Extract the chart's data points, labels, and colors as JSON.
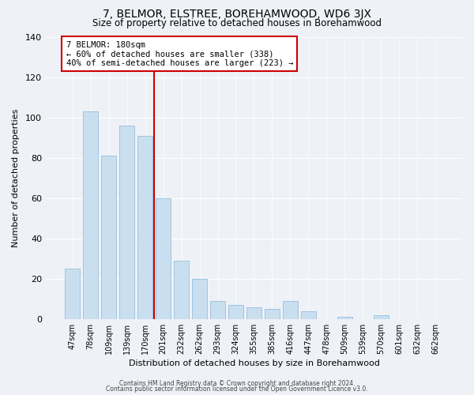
{
  "title": "7, BELMOR, ELSTREE, BOREHAMWOOD, WD6 3JX",
  "subtitle": "Size of property relative to detached houses in Borehamwood",
  "xlabel": "Distribution of detached houses by size in Borehamwood",
  "ylabel": "Number of detached properties",
  "categories": [
    "47sqm",
    "78sqm",
    "109sqm",
    "139sqm",
    "170sqm",
    "201sqm",
    "232sqm",
    "262sqm",
    "293sqm",
    "324sqm",
    "355sqm",
    "385sqm",
    "416sqm",
    "447sqm",
    "478sqm",
    "509sqm",
    "539sqm",
    "570sqm",
    "601sqm",
    "632sqm",
    "662sqm"
  ],
  "values": [
    25,
    103,
    81,
    96,
    91,
    60,
    29,
    20,
    9,
    7,
    6,
    5,
    9,
    4,
    0,
    1,
    0,
    2,
    0,
    0,
    0
  ],
  "bar_color": "#c9dff0",
  "bar_edge_color": "#a0c4e0",
  "vline_x": 4.5,
  "vline_color": "#cc0000",
  "annotation_title": "7 BELMOR: 180sqm",
  "annotation_line1": "← 60% of detached houses are smaller (338)",
  "annotation_line2": "40% of semi-detached houses are larger (223) →",
  "annotation_box_color": "#ffffff",
  "annotation_box_edge": "#cc0000",
  "ylim": [
    0,
    140
  ],
  "yticks": [
    0,
    20,
    40,
    60,
    80,
    100,
    120,
    140
  ],
  "footer1": "Contains HM Land Registry data © Crown copyright and database right 2024.",
  "footer2": "Contains public sector information licensed under the Open Government Licence v3.0.",
  "bg_color": "#eef2f7"
}
